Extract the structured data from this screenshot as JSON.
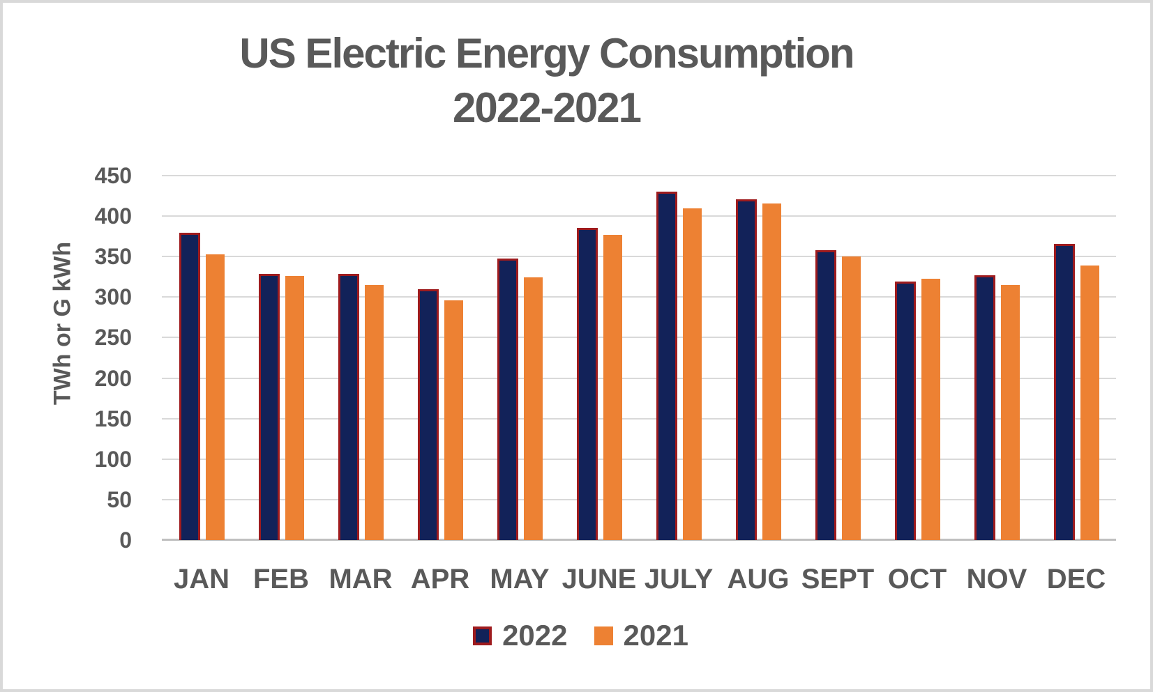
{
  "title": {
    "line1": "US Electric Energy Consumption",
    "line2": "2022-2021"
  },
  "colors": {
    "series_2022_fill": "#122259",
    "series_2022_border": "#9e1b1e",
    "series_2021_fill": "#ed8133",
    "text": "#595959",
    "gridline": "#d9d9d9",
    "baseline": "#bfbfbf",
    "frame": "#d9d9d9"
  },
  "chart_data": {
    "type": "bar",
    "title": "US Electric Energy Consumption 2022-2021",
    "xlabel": "",
    "ylabel": "TWh or G kWh",
    "ylim": [
      0,
      450
    ],
    "y_tick_step": 50,
    "y_ticks": [
      0,
      50,
      100,
      150,
      200,
      250,
      300,
      350,
      400,
      450
    ],
    "grid": true,
    "legend_position": "bottom",
    "categories": [
      "JAN",
      "FEB",
      "MAR",
      "APR",
      "MAY",
      "JUNE",
      "JULY",
      "AUG",
      "SEPT",
      "OCT",
      "NOV",
      "DEC"
    ],
    "series": [
      {
        "name": "2022",
        "values": [
          377,
          326,
          326,
          307,
          345,
          383,
          428,
          418,
          355,
          317,
          324,
          363
        ]
      },
      {
        "name": "2021",
        "values": [
          353,
          326,
          315,
          296,
          324,
          377,
          410,
          416,
          350,
          323,
          315,
          339
        ]
      }
    ]
  }
}
